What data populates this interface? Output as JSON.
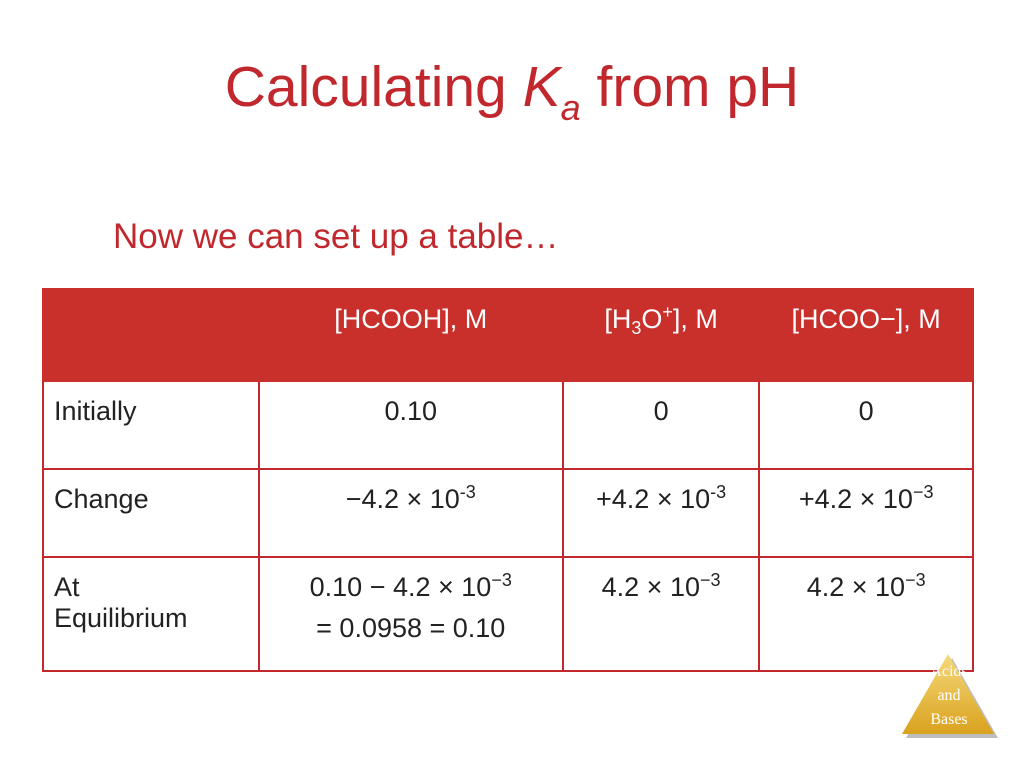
{
  "title": {
    "prefix": "Calculating ",
    "k": "K",
    "sub": "a",
    "suffix": " from pH"
  },
  "subtitle": "Now we can set up a table…",
  "table": {
    "headers": {
      "col0": "",
      "col1": "[HCOOH], M",
      "col2_open": "[H",
      "col2_sub": "3",
      "col2_mid": "O",
      "col2_sup": "+",
      "col2_close": "], M",
      "col3": "[HCOO−], M"
    },
    "initially": {
      "label": "Initially",
      "hcooh": "0.10",
      "h3o": "0",
      "hcoo": "0"
    },
    "change": {
      "label": "Change",
      "hcooh_base": "−4.2 × 10",
      "hcooh_exp": "-3",
      "h3o_base": "+4.2 × 10",
      "h3o_exp": "-3",
      "hcoo_base": "+4.2 × 10",
      "hcoo_exp": "−3"
    },
    "equilibrium": {
      "label_line1": "At",
      "label_line2": "Equilibrium",
      "hcooh_line1_base": "0.10 − 4.2 × 10",
      "hcooh_line1_exp": "−3",
      "hcooh_line2": "= 0.0958 = 0.10",
      "h3o_base": "4.2 × 10",
      "h3o_exp": "−3",
      "hcoo_base": "4.2 × 10",
      "hcoo_exp": "−3"
    }
  },
  "logo": {
    "line1": "Acids",
    "line2": "and",
    "line3": "Bases"
  },
  "colors": {
    "accent": "#c0282e",
    "header_fill": "#c9302c",
    "logo_gold": "#e8b830"
  }
}
